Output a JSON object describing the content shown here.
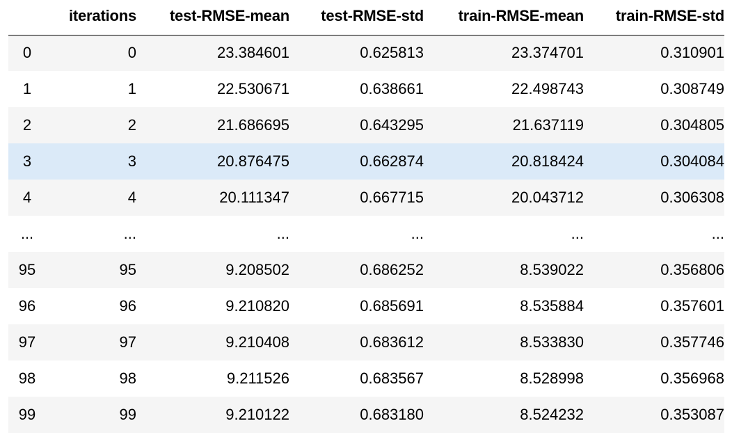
{
  "table": {
    "columns": [
      "",
      "iterations",
      "test-RMSE-mean",
      "test-RMSE-std",
      "train-RMSE-mean",
      "train-RMSE-std"
    ],
    "rows": [
      [
        "0",
        "0",
        "23.384601",
        "0.625813",
        "23.374701",
        "0.310901"
      ],
      [
        "1",
        "1",
        "22.530671",
        "0.638661",
        "22.498743",
        "0.308749"
      ],
      [
        "2",
        "2",
        "21.686695",
        "0.643295",
        "21.637119",
        "0.304805"
      ],
      [
        "3",
        "3",
        "20.876475",
        "0.662874",
        "20.818424",
        "0.304084"
      ],
      [
        "4",
        "4",
        "20.111347",
        "0.667715",
        "20.043712",
        "0.306308"
      ],
      [
        "...",
        "...",
        "...",
        "...",
        "...",
        "..."
      ],
      [
        "95",
        "95",
        "9.208502",
        "0.686252",
        "8.539022",
        "0.356806"
      ],
      [
        "96",
        "96",
        "9.210820",
        "0.685691",
        "8.535884",
        "0.357601"
      ],
      [
        "97",
        "97",
        "9.210408",
        "0.683612",
        "8.533830",
        "0.357746"
      ],
      [
        "98",
        "98",
        "9.211526",
        "0.683567",
        "8.528998",
        "0.356968"
      ],
      [
        "99",
        "99",
        "9.210122",
        "0.683180",
        "8.524232",
        "0.353087"
      ]
    ],
    "highlighted_row_index": 3,
    "colors": {
      "stripe": "#f5f5f5",
      "highlight": "#dbeaf8",
      "header_border": "#000000"
    }
  }
}
